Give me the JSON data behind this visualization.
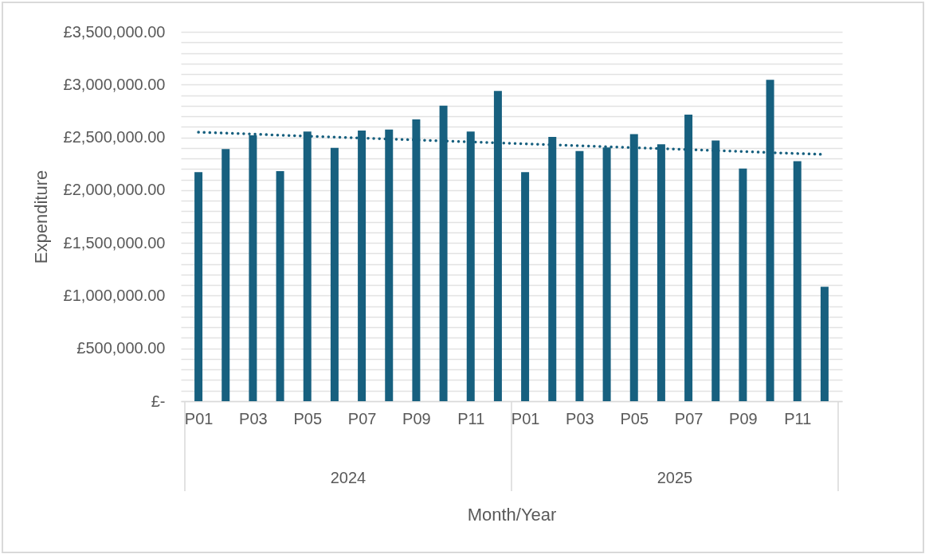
{
  "chart_data": {
    "type": "bar",
    "xlabel": "Month/Year",
    "ylabel": "Expenditure",
    "categories": [
      "P01",
      null,
      "P03",
      null,
      "P05",
      null,
      "P07",
      null,
      "P09",
      null,
      "P11",
      null,
      "P01",
      null,
      "P03",
      null,
      "P05",
      null,
      "P07",
      null,
      "P09",
      null,
      "P11",
      null
    ],
    "annotations": [
      "2024",
      "2025"
    ],
    "series": [
      {
        "color": "#17607f",
        "values": [
          2170000,
          2390000,
          2520000,
          2180000,
          2555000,
          2400000,
          2565000,
          2575000,
          2670000,
          2800000,
          2555000,
          2940000,
          2170000,
          2505000,
          2370000,
          2405000,
          2530000,
          2435000,
          2715000,
          2470000,
          2205000,
          3045000,
          2275000,
          1085000
        ]
      },
      {
        "type": "line",
        "color": "#17607f",
        "values": [
          2549000,
          2540000,
          2531000,
          2521000,
          2512000,
          2503000,
          2494000,
          2485000,
          2476000,
          2466000,
          2457000,
          2448000,
          2439000,
          2430000,
          2421000,
          2411000,
          2402000,
          2393000,
          2384000,
          2375000,
          2366000,
          2356000,
          2347000,
          2338000
        ]
      }
    ],
    "line_style": "dotted",
    "ylim": [
      0,
      3500000
    ],
    "yticks": [
      {
        "value": 0,
        "label": "£-"
      },
      {
        "value": 100000,
        "label": null
      },
      {
        "value": 200000,
        "label": null
      },
      {
        "value": 300000,
        "label": null
      },
      {
        "value": 400000,
        "label": null
      },
      {
        "value": 500000,
        "label": "£500,000.00"
      },
      {
        "value": 600000,
        "label": null
      },
      {
        "value": 700000,
        "label": null
      },
      {
        "value": 800000,
        "label": null
      },
      {
        "value": 900000,
        "label": null
      },
      {
        "value": 1000000,
        "label": "£1,000,000.00"
      },
      {
        "value": 1100000,
        "label": null
      },
      {
        "value": 1200000,
        "label": null
      },
      {
        "value": 1300000,
        "label": null
      },
      {
        "value": 1400000,
        "label": null
      },
      {
        "value": 1500000,
        "label": "£1,500,000.00"
      },
      {
        "value": 1600000,
        "label": null
      },
      {
        "value": 1700000,
        "label": null
      },
      {
        "value": 1800000,
        "label": null
      },
      {
        "value": 1900000,
        "label": null
      },
      {
        "value": 2000000,
        "label": "£2,000,000.00"
      },
      {
        "value": 2100000,
        "label": null
      },
      {
        "value": 2200000,
        "label": null
      },
      {
        "value": 2300000,
        "label": null
      },
      {
        "value": 2400000,
        "label": null
      },
      {
        "value": 2500000,
        "label": "£2,500,000.00"
      },
      {
        "value": 2600000,
        "label": null
      },
      {
        "value": 2700000,
        "label": null
      },
      {
        "value": 2800000,
        "label": null
      },
      {
        "value": 2900000,
        "label": null
      },
      {
        "value": 3000000,
        "label": "£3,000,000.00"
      },
      {
        "value": 3100000,
        "label": null
      },
      {
        "value": 3200000,
        "label": null
      },
      {
        "value": 3300000,
        "label": null
      },
      {
        "value": 3400000,
        "label": null
      },
      {
        "value": 3500000,
        "label": "£3,500,000.00"
      }
    ],
    "grid": "y"
  }
}
